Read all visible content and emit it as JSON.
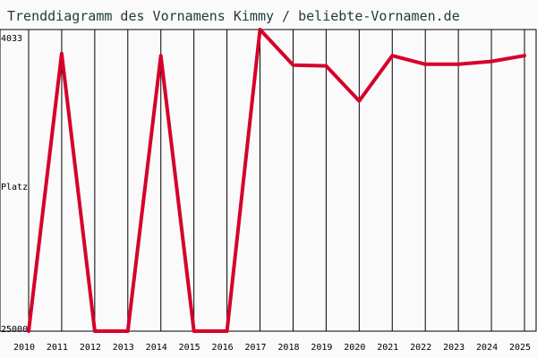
{
  "chart_data": {
    "type": "line",
    "title": "Trenddiagramm des Vornamens Kimmy / beliebte-Vornamen.de",
    "ylabel": "Platz",
    "x": [
      2010,
      2011,
      2012,
      2013,
      2014,
      2015,
      2016,
      2017,
      2018,
      2019,
      2020,
      2021,
      2022,
      2023,
      2024,
      2025
    ],
    "series": [
      {
        "values": [
          25000,
          5700,
          25000,
          25000,
          5850,
          25000,
          25000,
          4033,
          6500,
          6560,
          9000,
          5850,
          6450,
          6450,
          6250,
          5850
        ]
      }
    ],
    "y_ticks": [
      "4033",
      "Platz",
      "25000"
    ],
    "ylim_top": 4033,
    "ylim_bottom": 25000,
    "y_inverted": true,
    "grid": "vertical",
    "line_color": "#d6002b"
  }
}
